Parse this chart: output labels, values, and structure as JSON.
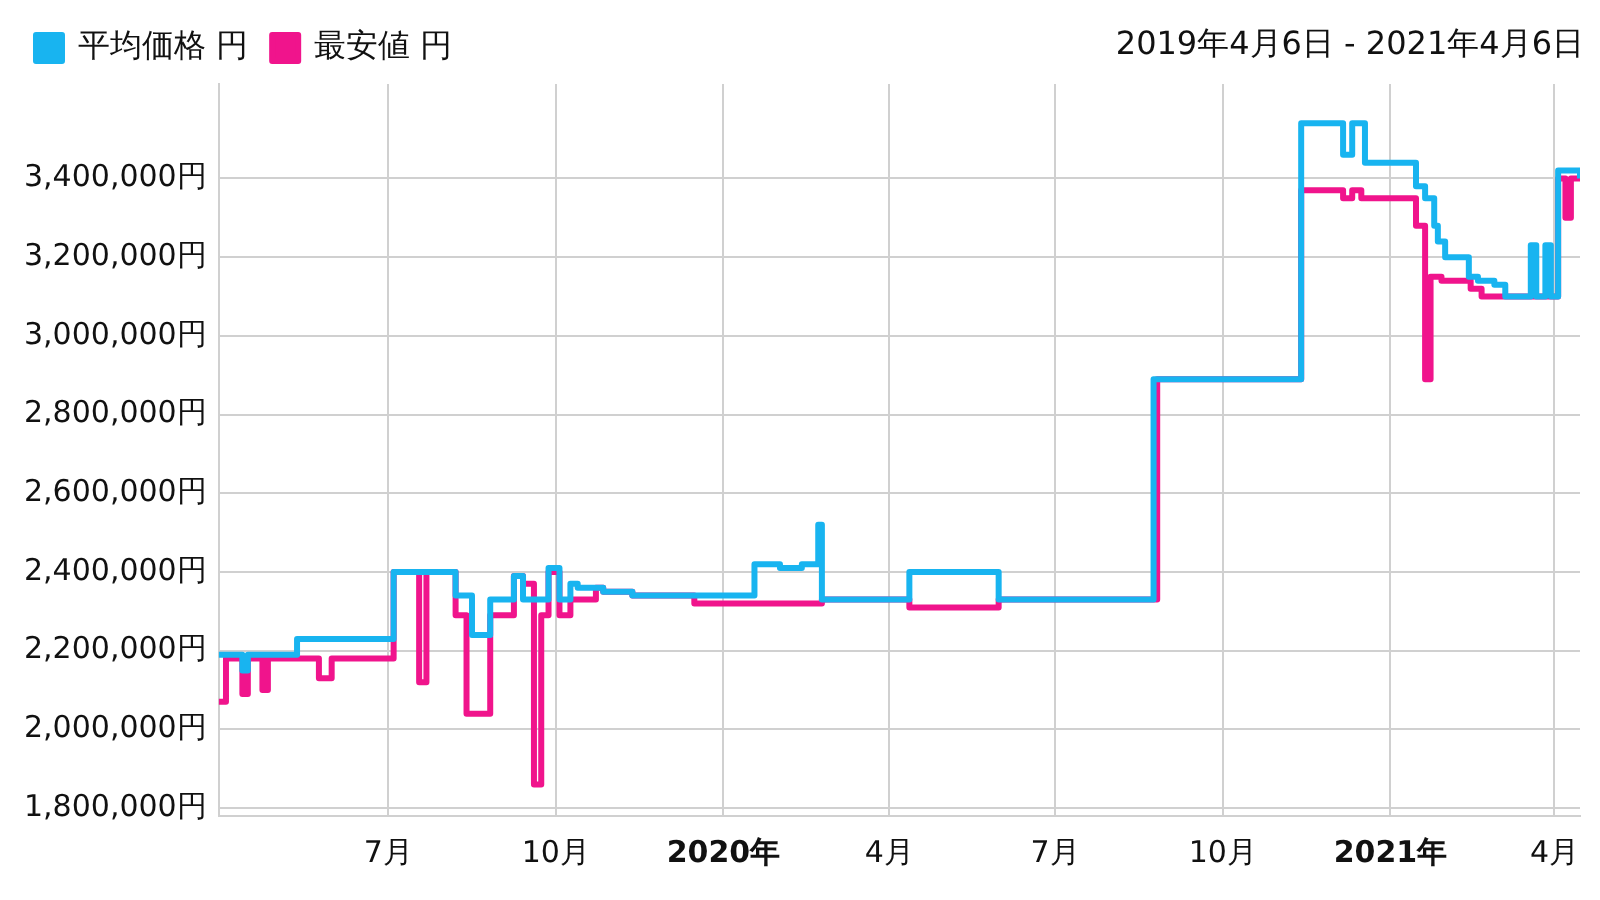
{
  "chart_data": {
    "type": "step",
    "subtitle": "2019年4月6日 - 2021年4月6日",
    "xlim": [
      "2019-03-30",
      "2021-04-15"
    ],
    "xticks": [
      {
        "value": "2019-07-01",
        "label": "7月"
      },
      {
        "value": "2019-10-01",
        "label": "10月"
      },
      {
        "value": "2020-01-01",
        "label": "2020年"
      },
      {
        "value": "2020-04-01",
        "label": "4月"
      },
      {
        "value": "2020-07-01",
        "label": "7月"
      },
      {
        "value": "2020-10-01",
        "label": "10月"
      },
      {
        "value": "2021-01-01",
        "label": "2021年"
      },
      {
        "value": "2021-04-01",
        "label": "4月"
      }
    ],
    "ylim": [
      1780000,
      3640000
    ],
    "yticks": [
      {
        "value": 1800000,
        "label": "1,800,000円"
      },
      {
        "value": 2000000,
        "label": "2,000,000円"
      },
      {
        "value": 2200000,
        "label": "2,200,000円"
      },
      {
        "value": 2400000,
        "label": "2,400,000円"
      },
      {
        "value": 2600000,
        "label": "2,600,000円"
      },
      {
        "value": 2800000,
        "label": "2,800,000円"
      },
      {
        "value": 3000000,
        "label": "3,000,000円"
      },
      {
        "value": 3200000,
        "label": "3,200,000円"
      },
      {
        "value": 3400000,
        "label": "3,400,000円"
      }
    ],
    "grid": true,
    "legend": "top left",
    "marker": "none",
    "series": [
      {
        "name": "平均価格 円",
        "color": "#18b4f0",
        "x": [
          "2019-03-30",
          "2019-04-12",
          "2019-04-15",
          "2019-05-12",
          "2019-07-04",
          "2019-08-07",
          "2019-08-16",
          "2019-08-26",
          "2019-09-08",
          "2019-09-13",
          "2019-09-27",
          "2019-10-03",
          "2019-10-09",
          "2019-10-13",
          "2019-10-27",
          "2019-11-12",
          "2020-01-18",
          "2020-02-01",
          "2020-02-13",
          "2020-02-22",
          "2020-02-24",
          "2020-04-12",
          "2020-05-31",
          "2020-08-24",
          "2020-11-13",
          "2020-12-06",
          "2020-12-11",
          "2020-12-18",
          "2021-01-15",
          "2021-01-20",
          "2021-01-25",
          "2021-01-27",
          "2021-01-31",
          "2021-02-13",
          "2021-02-18",
          "2021-02-27",
          "2021-03-05",
          "2021-03-19",
          "2021-03-22",
          "2021-03-27",
          "2021-03-30",
          "2021-04-03",
          "2021-04-15"
        ],
        "values": [
          2190000,
          2150000,
          2190000,
          2230000,
          2400000,
          2340000,
          2240000,
          2330000,
          2390000,
          2330000,
          2410000,
          2330000,
          2370000,
          2360000,
          2350000,
          2340000,
          2420000,
          2410000,
          2420000,
          2520000,
          2330000,
          2400000,
          2330000,
          2890000,
          3540000,
          3460000,
          3540000,
          3440000,
          3380000,
          3350000,
          3280000,
          3240000,
          3200000,
          3150000,
          3140000,
          3130000,
          3100000,
          3230000,
          3100000,
          3230000,
          3100000,
          3420000,
          3400000
        ]
      },
      {
        "name": "最安値 円",
        "color": "#f0148c",
        "x": [
          "2019-03-30",
          "2019-04-03",
          "2019-04-12",
          "2019-04-15",
          "2019-04-23",
          "2019-04-26",
          "2019-05-24",
          "2019-05-31",
          "2019-07-04",
          "2019-07-18",
          "2019-07-22",
          "2019-08-07",
          "2019-08-13",
          "2019-08-26",
          "2019-09-08",
          "2019-09-13",
          "2019-09-19",
          "2019-09-23",
          "2019-09-27",
          "2019-10-03",
          "2019-10-09",
          "2019-10-23",
          "2019-10-27",
          "2019-11-12",
          "2019-12-16",
          "2020-02-24",
          "2020-04-12",
          "2020-05-31",
          "2020-08-26",
          "2020-11-13",
          "2020-12-06",
          "2020-12-11",
          "2020-12-16",
          "2021-01-15",
          "2021-01-20",
          "2021-01-23",
          "2021-01-29",
          "2021-02-14",
          "2021-02-20",
          "2021-04-03",
          "2021-04-07",
          "2021-04-10",
          "2021-04-15"
        ],
        "values": [
          2070000,
          2180000,
          2090000,
          2180000,
          2100000,
          2180000,
          2130000,
          2180000,
          2400000,
          2120000,
          2400000,
          2290000,
          2040000,
          2290000,
          2390000,
          2370000,
          1860000,
          2290000,
          2400000,
          2290000,
          2330000,
          2360000,
          2350000,
          2340000,
          2320000,
          2330000,
          2310000,
          2330000,
          2890000,
          3370000,
          3350000,
          3370000,
          3350000,
          3280000,
          2890000,
          3150000,
          3140000,
          3120000,
          3100000,
          3400000,
          3300000,
          3400000,
          3400000
        ]
      }
    ]
  }
}
